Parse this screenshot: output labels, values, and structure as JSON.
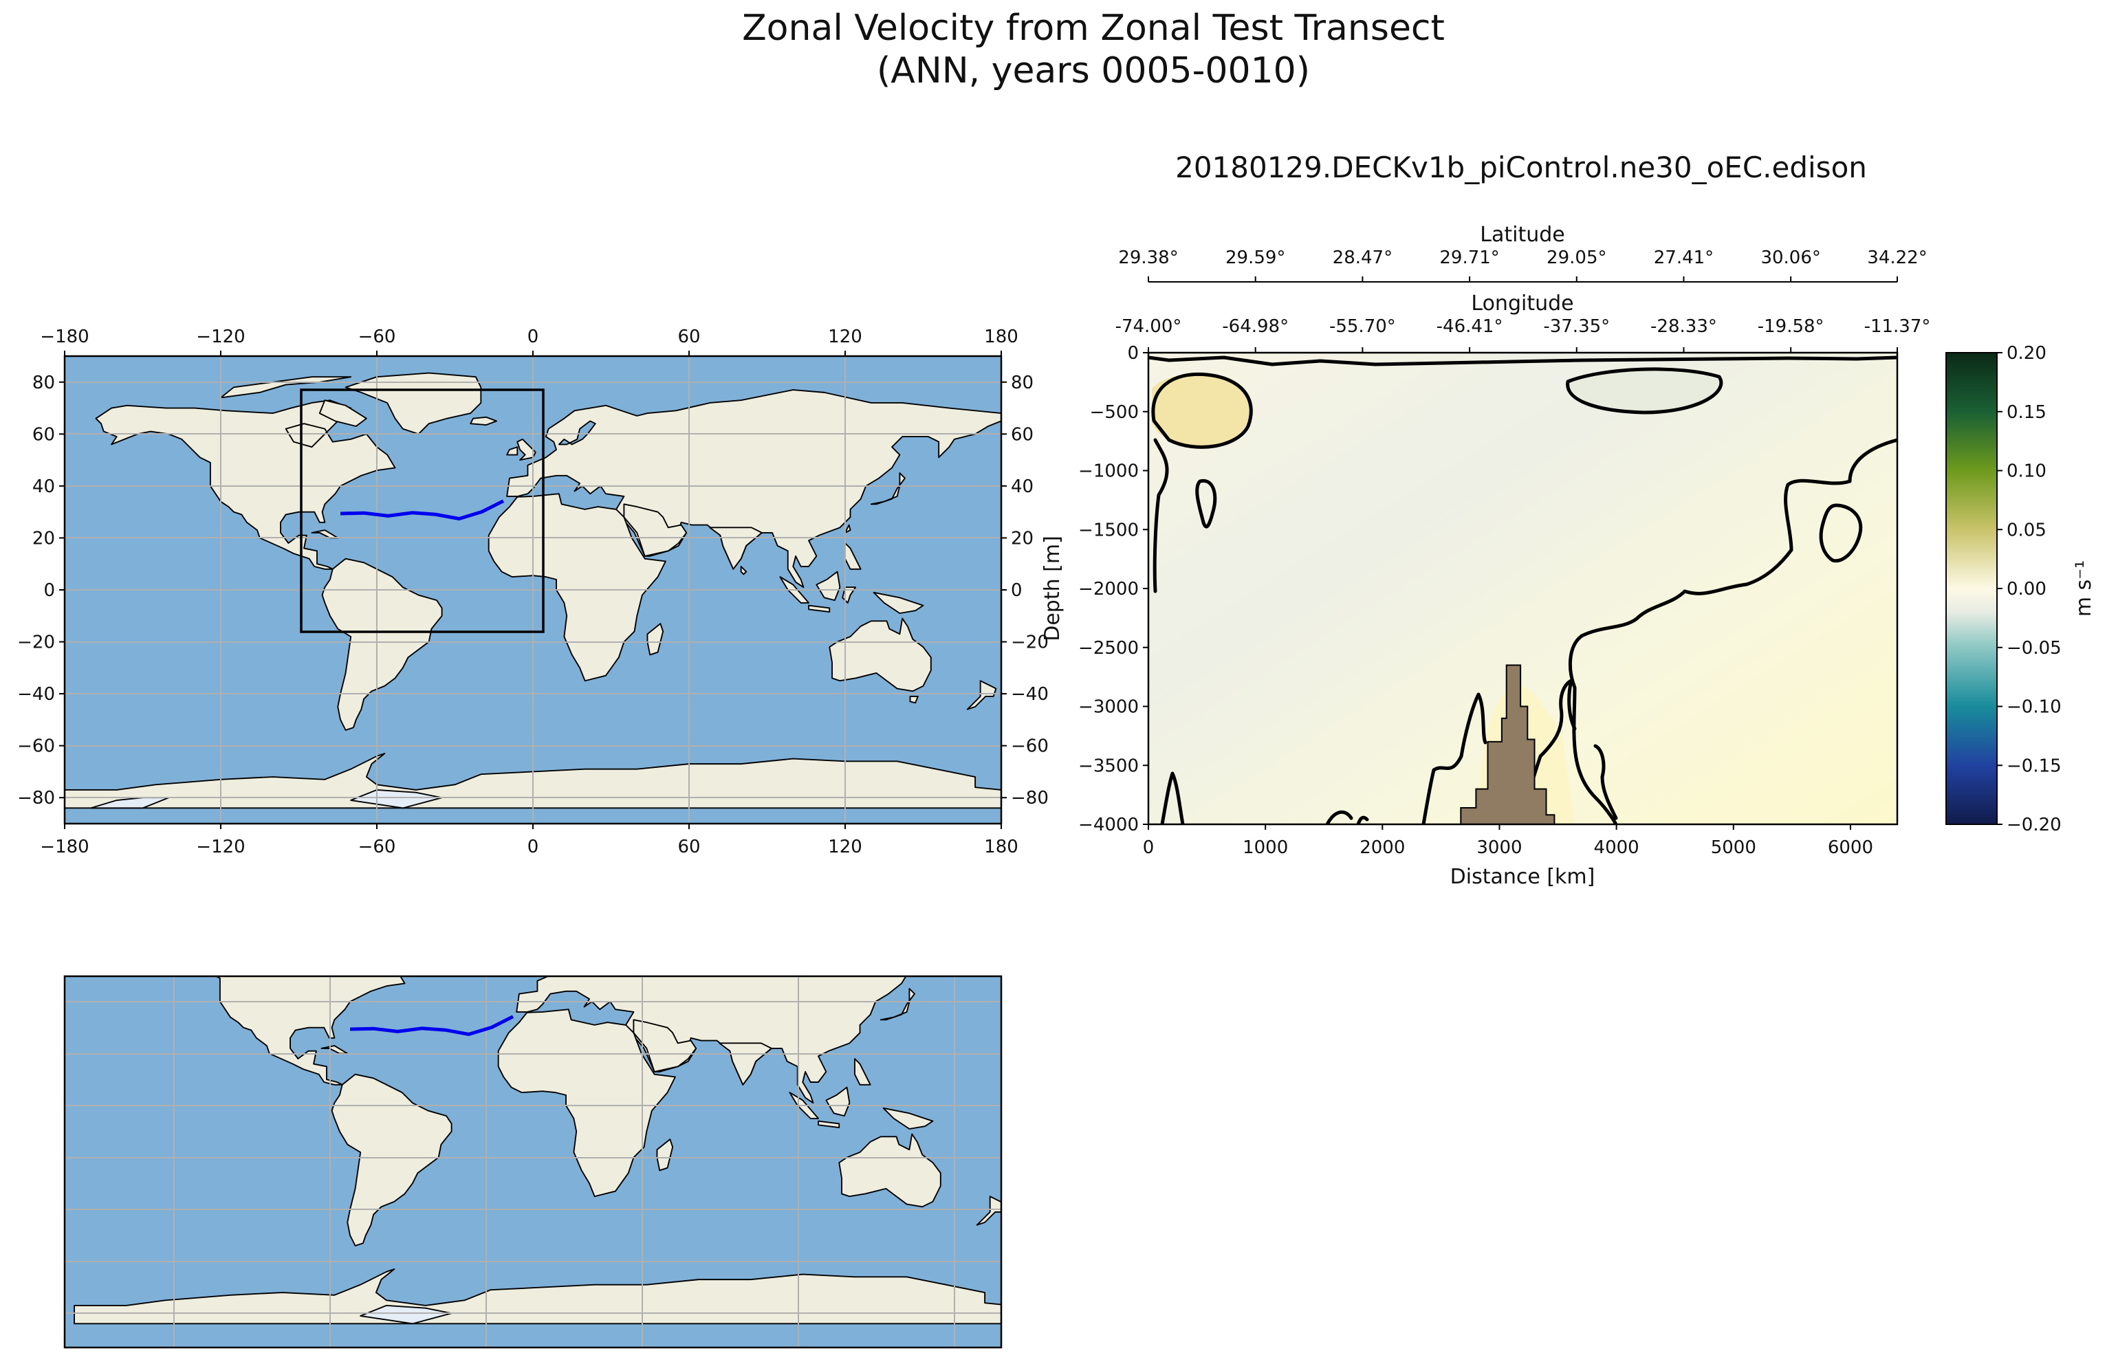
{
  "figure": {
    "title_line1": "Zonal Velocity from Zonal Test Transect",
    "title_line2": "(ANN, years 0005-0010)",
    "run_title": "20180129.DECKv1b_piControl.ne30_oEC.edison"
  },
  "colors": {
    "ocean": "#7fb0d8",
    "land": "#efeddd",
    "coast": "#000000",
    "transect": "#0000ee",
    "seafloor": "#8f7c63",
    "grid": "#b0b0b0"
  },
  "chart_data": [
    {
      "type": "map",
      "name": "global-map",
      "projection": "PlateCarree",
      "lon_ticks": [
        "−180",
        "−120",
        "−60",
        "0",
        "60",
        "120",
        "180"
      ],
      "lon_values": [
        -180,
        -120,
        -60,
        0,
        60,
        120,
        180
      ],
      "lat_ticks": [
        "80",
        "60",
        "40",
        "20",
        "0",
        "−20",
        "−40",
        "−60",
        "−80"
      ],
      "lat_values": [
        80,
        60,
        40,
        20,
        0,
        -20,
        -40,
        -60,
        -80
      ],
      "xlim": [
        -180,
        180
      ],
      "ylim": [
        -90,
        90
      ],
      "zoom_box": {
        "lon": [
          -89,
          4
        ],
        "lat": [
          -16,
          77
        ]
      },
      "transect": {
        "lon": [
          -74.0,
          -64.98,
          -55.7,
          -46.41,
          -37.35,
          -28.33,
          -19.58,
          -11.37
        ],
        "lat": [
          29.38,
          29.59,
          28.47,
          29.71,
          29.05,
          27.41,
          30.06,
          34.22
        ]
      }
    },
    {
      "type": "map",
      "name": "zoom-map",
      "projection": "PlateCarree",
      "xlim": [
        -89,
        4
      ],
      "ylim": [
        -16,
        77
      ],
      "transect": {
        "lon": [
          -74.0,
          -64.98,
          -55.7,
          -46.41,
          -37.35,
          -28.33,
          -19.58,
          -11.37
        ],
        "lat": [
          29.38,
          29.59,
          28.47,
          29.71,
          29.05,
          27.41,
          30.06,
          34.22
        ]
      }
    },
    {
      "type": "contour",
      "name": "velocity-section",
      "xlabel": "Distance [km]",
      "ylabel": "Depth [m]",
      "x_ticks": [
        "0",
        "1000",
        "2000",
        "3000",
        "4000",
        "5000",
        "6000"
      ],
      "x_values": [
        0,
        1000,
        2000,
        3000,
        4000,
        5000,
        6000
      ],
      "xlim": [
        0,
        6400
      ],
      "y_ticks": [
        "0",
        "−500",
        "−1000",
        "−1500",
        "−2000",
        "−2500",
        "−3000",
        "−3500",
        "−4000"
      ],
      "y_values": [
        0,
        -500,
        -1000,
        -1500,
        -2000,
        -2500,
        -3000,
        -3500,
        -4000
      ],
      "ylim": [
        -4000,
        0
      ],
      "latitude_label": "Latitude",
      "latitude_ticks": [
        "29.38°",
        "29.59°",
        "28.47°",
        "29.71°",
        "29.05°",
        "27.41°",
        "30.06°",
        "34.22°"
      ],
      "longitude_label": "Longitude",
      "longitude_ticks": [
        "-74.00°",
        "-64.98°",
        "-55.70°",
        "-46.41°",
        "-37.35°",
        "-28.33°",
        "-19.58°",
        "-11.37°"
      ],
      "secondary_tick_distances": [
        0,
        915,
        1830,
        2745,
        3660,
        4575,
        5490,
        6400
      ],
      "seamount": {
        "x": [
          2670,
          2670,
          2800,
          2800,
          2900,
          2900,
          3020,
          3020,
          3060,
          3060,
          3180,
          3180,
          3240,
          3240,
          3300,
          3300,
          3400,
          3400,
          3470,
          3470
        ],
        "depth": [
          -4000,
          -3860,
          -3860,
          -3700,
          -3700,
          -3300,
          -3300,
          -3100,
          -3100,
          -2650,
          -2650,
          -3000,
          -3000,
          -3280,
          -3280,
          -3700,
          -3700,
          -3920,
          -3920,
          -4000
        ]
      },
      "colorbar": {
        "label": "m s⁻¹",
        "ticks": [
          "0.20",
          "0.15",
          "0.10",
          "0.05",
          "0.00",
          "−0.05",
          "−0.10",
          "−0.15",
          "−0.20"
        ],
        "values": [
          0.2,
          0.15,
          0.1,
          0.05,
          0.0,
          -0.05,
          -0.1,
          -0.15,
          -0.2
        ],
        "range": [
          -0.2,
          0.2
        ],
        "stops": [
          {
            "v": 0.2,
            "c": "#0b2a18"
          },
          {
            "v": 0.15,
            "c": "#1a6034"
          },
          {
            "v": 0.1,
            "c": "#6e9a1d"
          },
          {
            "v": 0.05,
            "c": "#c9c36a"
          },
          {
            "v": 0.0,
            "c": "#fdf9e5"
          },
          {
            "v": -0.02,
            "c": "#e7ece3"
          },
          {
            "v": -0.05,
            "c": "#8cc7c3"
          },
          {
            "v": -0.1,
            "c": "#198c9b"
          },
          {
            "v": -0.15,
            "c": "#2142a0"
          },
          {
            "v": -0.2,
            "c": "#111b4b"
          }
        ]
      }
    }
  ]
}
